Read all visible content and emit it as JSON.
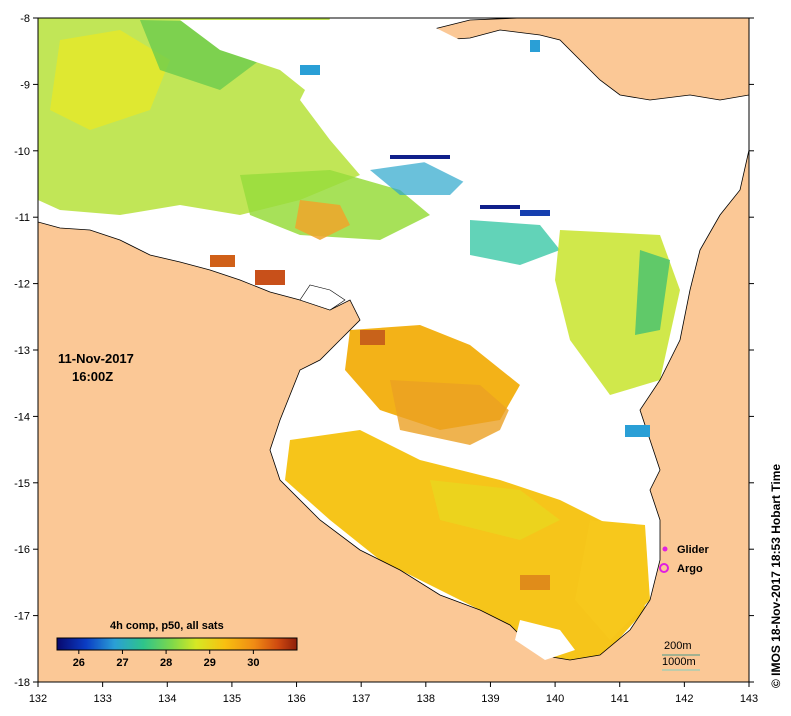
{
  "map": {
    "lon_range": [
      132,
      143
    ],
    "lat_range": [
      -18,
      -8
    ],
    "x_ticks": [
      "132",
      "133",
      "134",
      "135",
      "136",
      "137",
      "138",
      "139",
      "140",
      "141",
      "142",
      "143"
    ],
    "y_ticks": [
      "-8",
      "-9",
      "-10",
      "-11",
      "-12",
      "-13",
      "-14",
      "-15",
      "-16",
      "-17",
      "-18"
    ],
    "date": "11-Nov-2017",
    "time": "16:00Z",
    "credit": "© IMOS 18-Nov-2017 18:53 Hobart Time"
  },
  "colorbar": {
    "title": "4h comp, p50, all sats",
    "ticks": [
      "26",
      "27",
      "28",
      "29",
      "30"
    ],
    "tick_values": [
      26,
      27,
      28,
      29,
      30
    ],
    "range": [
      25.5,
      31
    ],
    "stops": [
      "#08086e",
      "#0a3cc4",
      "#2a9fd6",
      "#2ec48a",
      "#7fd84a",
      "#d6e824",
      "#f8c010",
      "#f08c14",
      "#d04a10",
      "#8e1e0a"
    ]
  },
  "legend": {
    "glider_label": "Glider",
    "argo_label": "Argo",
    "depth_200": "200m",
    "depth_1000": "1000m",
    "glider_color": "#e020e0",
    "argo_color": "#e020e0"
  },
  "colors": {
    "land": "#fbc896",
    "cloud": "#ffffff",
    "coast": "#000000"
  }
}
